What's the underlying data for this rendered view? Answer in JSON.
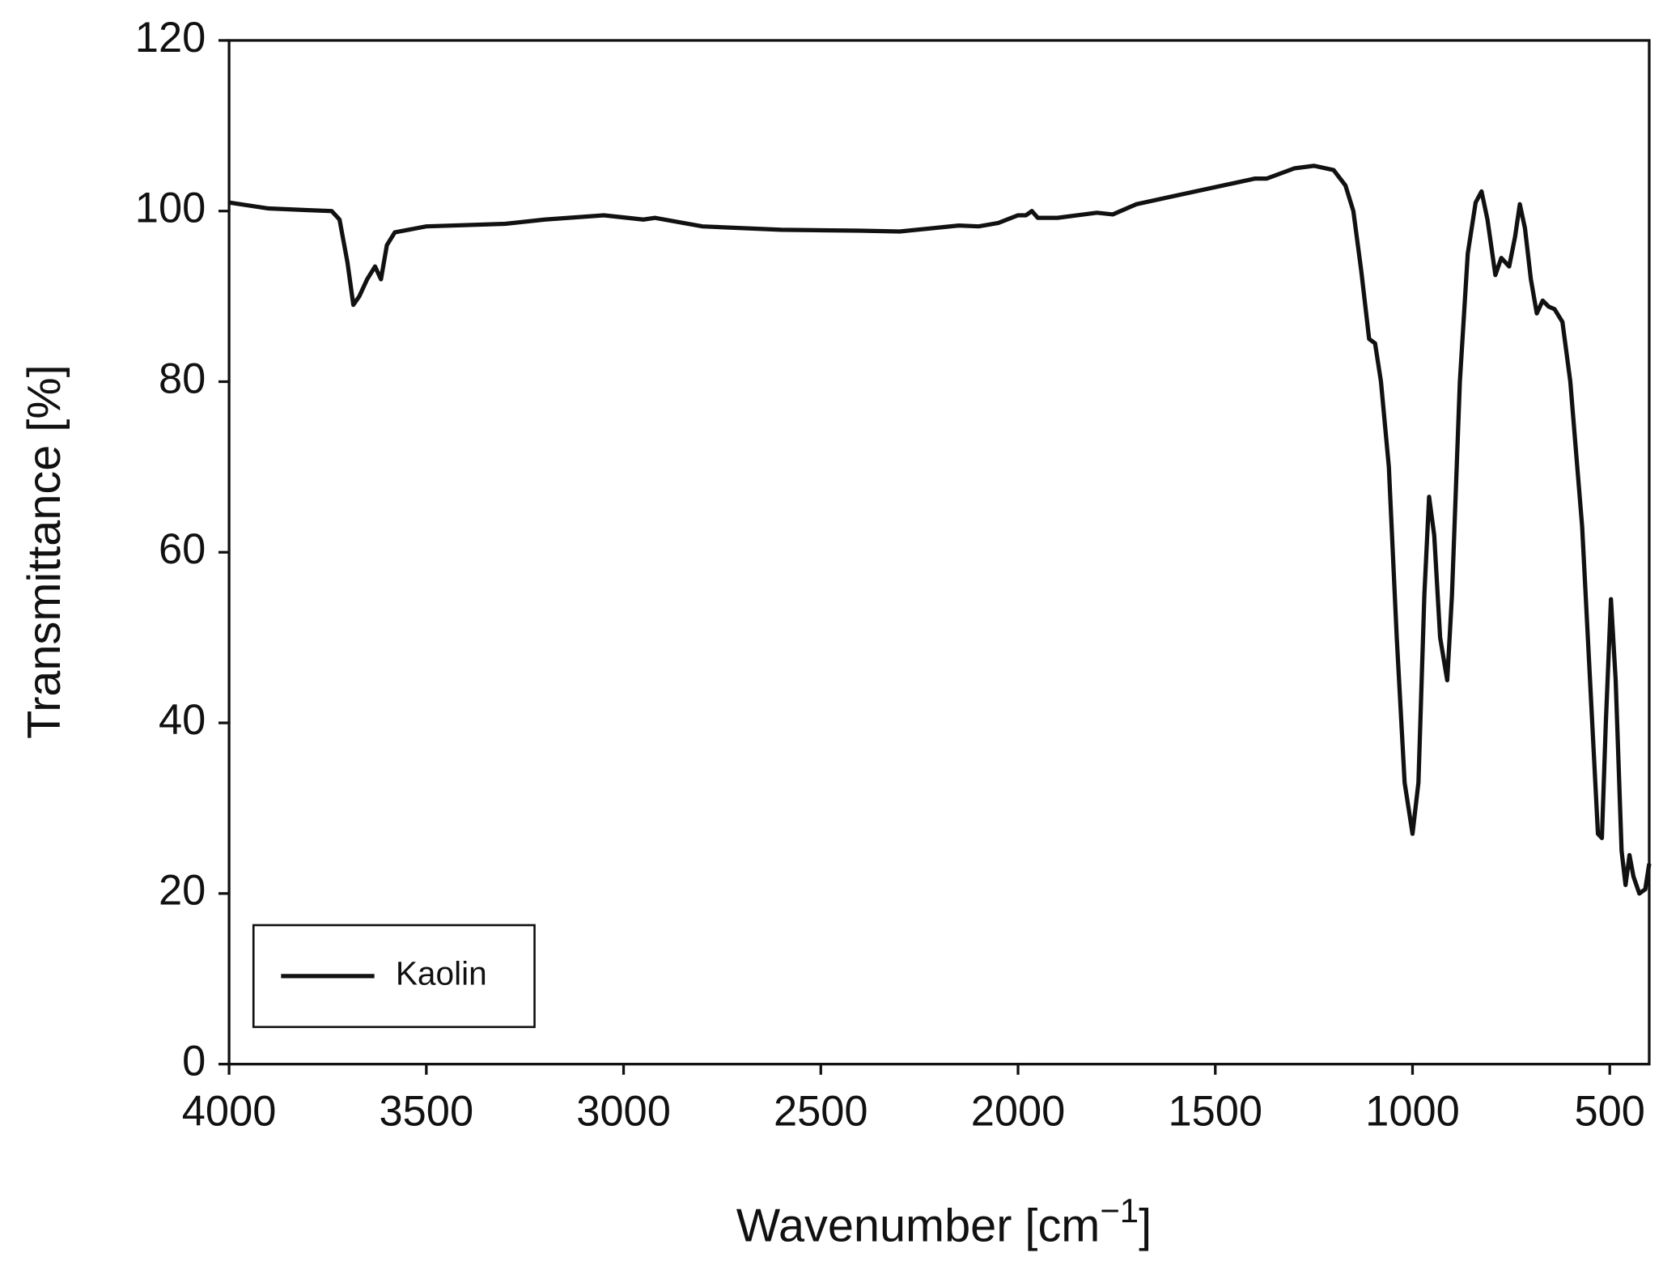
{
  "chart_data": {
    "type": "line",
    "x_label": [
      "Wavenumber [cm",
      "−1",
      "]"
    ],
    "y_label": "Transmittance [%]",
    "xlim": [
      4000,
      400
    ],
    "xticks": [
      4000,
      3500,
      3000,
      2500,
      2000,
      1500,
      1000,
      500
    ],
    "ylim": [
      0,
      120
    ],
    "yticks": [
      0,
      20,
      40,
      60,
      80,
      100,
      120
    ],
    "grid": false,
    "legend": "lower left",
    "x": [
      4000,
      3900,
      3800,
      3740,
      3720,
      3700,
      3685,
      3670,
      3650,
      3630,
      3615,
      3600,
      3580,
      3500,
      3300,
      3200,
      3050,
      2950,
      2920,
      2800,
      2600,
      2400,
      2300,
      2150,
      2100,
      2050,
      2000,
      1980,
      1965,
      1950,
      1900,
      1800,
      1760,
      1700,
      1600,
      1500,
      1400,
      1370,
      1300,
      1250,
      1200,
      1170,
      1150,
      1130,
      1110,
      1095,
      1080,
      1060,
      1040,
      1020,
      1000,
      985,
      970,
      958,
      945,
      930,
      912,
      900,
      880,
      860,
      840,
      825,
      810,
      790,
      775,
      765,
      755,
      740,
      728,
      715,
      700,
      685,
      670,
      655,
      640,
      620,
      600,
      570,
      550,
      530,
      520,
      510,
      497,
      485,
      470,
      460,
      450,
      440,
      425,
      410,
      400
    ],
    "series": [
      {
        "name": "Kaolin",
        "color": "#111111",
        "values": [
          101,
          100.3,
          100.1,
          100,
          99,
          94,
          89,
          90,
          92,
          93.5,
          92,
          96,
          97.5,
          98.2,
          98.5,
          99,
          99.5,
          99,
          99.2,
          98.2,
          97.8,
          97.7,
          97.6,
          98.3,
          98.2,
          98.6,
          99.5,
          99.5,
          100,
          99.2,
          99.2,
          99.8,
          99.6,
          100.8,
          101.8,
          102.8,
          103.8,
          103.8,
          105,
          105.3,
          104.8,
          103,
          100,
          93,
          85,
          84.5,
          80,
          70,
          50,
          33,
          27,
          33,
          55,
          66.5,
          62,
          50,
          45,
          55,
          80,
          95,
          101,
          102.3,
          99,
          92.5,
          94.5,
          94,
          93.5,
          97,
          100.8,
          98,
          92,
          88,
          89.5,
          88.8,
          88.5,
          87,
          80,
          63,
          45,
          27,
          26.5,
          40,
          54.5,
          45,
          25,
          21,
          24.5,
          22,
          20,
          20.5,
          23.5
        ]
      }
    ]
  }
}
